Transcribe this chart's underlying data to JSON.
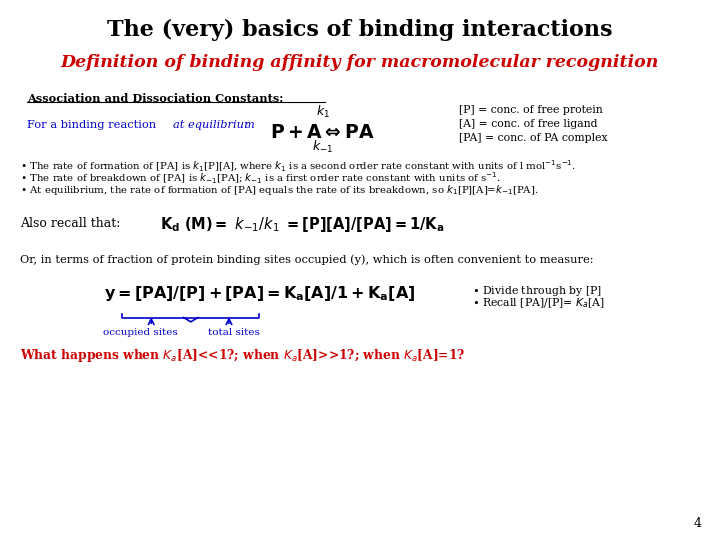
{
  "title": "The (very) basics of binding interactions",
  "subtitle": "Definition of binding affinity for macromolecular recognition",
  "bg_color": "#ffffff",
  "title_color": "#000000",
  "subtitle_color": "#cc0000",
  "blue_color": "#0000cc",
  "black_color": "#000000",
  "red_color": "#cc0000",
  "page_number": "4"
}
